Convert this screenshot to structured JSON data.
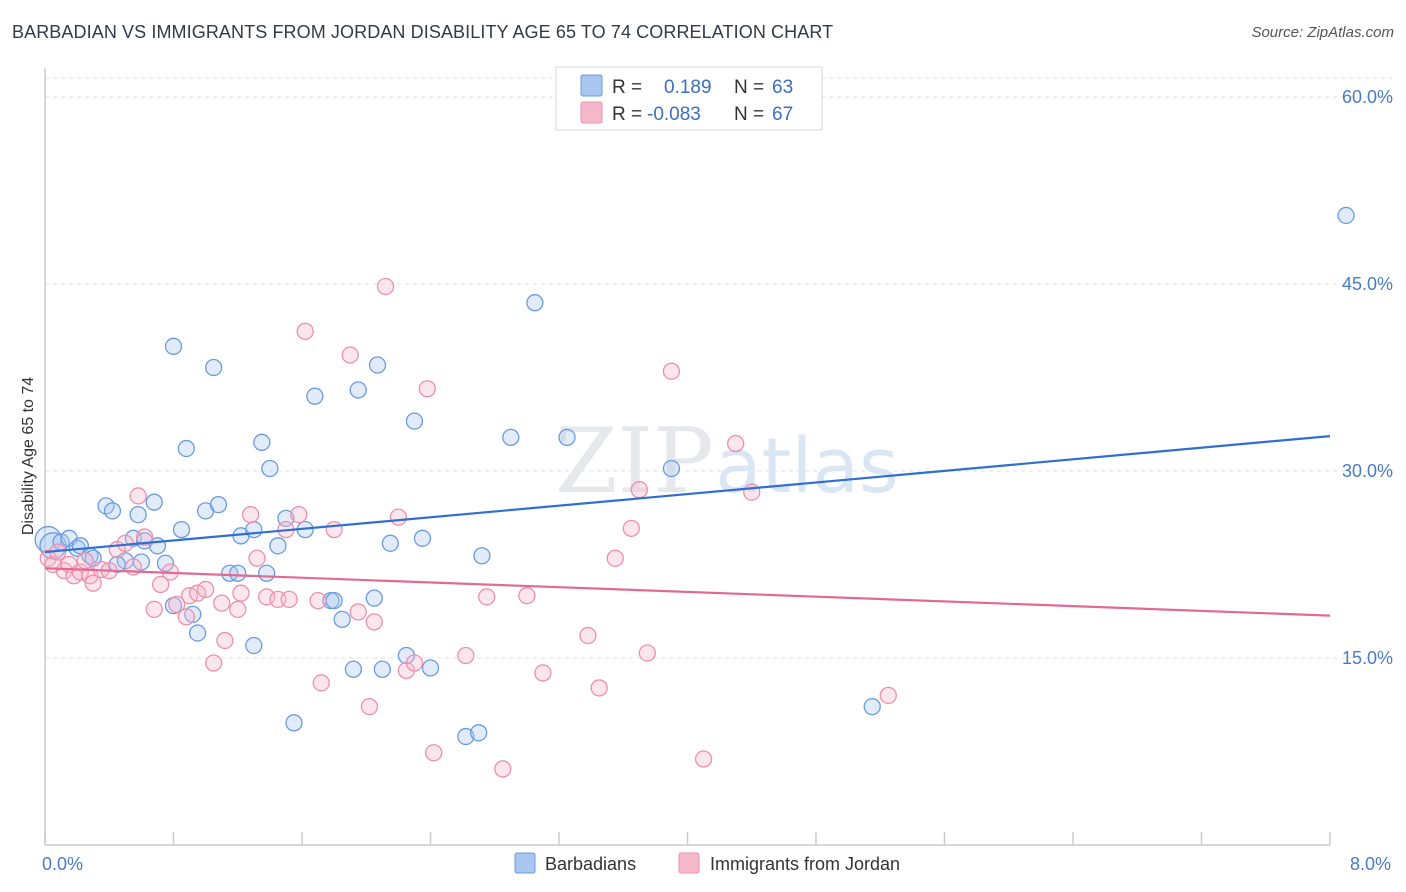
{
  "header": {
    "title": "BARBADIAN VS IMMIGRANTS FROM JORDAN DISABILITY AGE 65 TO 74 CORRELATION CHART",
    "source": "Source: ZipAtlas.com"
  },
  "watermark": {
    "zip": "ZIP",
    "atlas": "atlas"
  },
  "legend_box": {
    "rows": [
      {
        "r_label": "R =",
        "r_value": "0.189",
        "n_label": "N =",
        "n_value": "63",
        "color": "#a9c6f0"
      },
      {
        "r_label": "R =",
        "r_value": "-0.083",
        "n_label": "N =",
        "n_value": "67",
        "color": "#f5b8cb"
      }
    ]
  },
  "chart_data": {
    "type": "scatter",
    "title": "BARBADIAN VS IMMIGRANTS FROM JORDAN DISABILITY AGE 65 TO 74 CORRELATION CHART",
    "xlabel": "",
    "ylabel": "Disability Age 65 to 74",
    "xlim": [
      0,
      8
    ],
    "ylim": [
      0,
      60
    ],
    "x_tick_labels": [
      "0.0%",
      "8.0%"
    ],
    "y_ticks": [
      15,
      30,
      45,
      60
    ],
    "y_tick_labels": [
      "15.0%",
      "30.0%",
      "45.0%",
      "60.0%"
    ],
    "grid": true,
    "legend_position": "bottom",
    "series": [
      {
        "name": "Barbadians",
        "color": "#6a9be0",
        "fill": "#a9c6f0",
        "trend": {
          "x": [
            0,
            8
          ],
          "y": [
            23.5,
            32.8
          ],
          "color": "#2f6fd0"
        },
        "points": [
          [
            0.02,
            24.5
          ],
          [
            0.05,
            24.0
          ],
          [
            0.1,
            24.3
          ],
          [
            0.15,
            24.6
          ],
          [
            0.2,
            23.8
          ],
          [
            0.22,
            24.0
          ],
          [
            0.28,
            23.2
          ],
          [
            0.3,
            23.0
          ],
          [
            0.38,
            27.2
          ],
          [
            0.42,
            26.8
          ],
          [
            0.5,
            22.8
          ],
          [
            0.55,
            24.6
          ],
          [
            0.58,
            26.5
          ],
          [
            0.62,
            24.4
          ],
          [
            0.68,
            27.5
          ],
          [
            0.7,
            24.0
          ],
          [
            0.75,
            22.6
          ],
          [
            0.8,
            19.2
          ],
          [
            0.85,
            25.3
          ],
          [
            0.88,
            31.8
          ],
          [
            0.92,
            18.5
          ],
          [
            0.95,
            17.0
          ],
          [
            1.0,
            26.8
          ],
          [
            1.05,
            38.3
          ],
          [
            1.08,
            27.3
          ],
          [
            1.15,
            21.8
          ],
          [
            1.2,
            21.8
          ],
          [
            1.22,
            24.8
          ],
          [
            1.3,
            25.3
          ],
          [
            1.35,
            32.3
          ],
          [
            1.38,
            21.8
          ],
          [
            1.4,
            30.2
          ],
          [
            1.45,
            24.0
          ],
          [
            1.5,
            26.2
          ],
          [
            1.55,
            9.8
          ],
          [
            1.62,
            25.3
          ],
          [
            1.68,
            36.0
          ],
          [
            1.78,
            19.6
          ],
          [
            1.8,
            19.6
          ],
          [
            1.85,
            18.1
          ],
          [
            1.92,
            14.1
          ],
          [
            1.95,
            36.5
          ],
          [
            2.05,
            19.8
          ],
          [
            2.07,
            38.5
          ],
          [
            2.1,
            14.1
          ],
          [
            2.15,
            24.2
          ],
          [
            2.25,
            15.2
          ],
          [
            2.3,
            34.0
          ],
          [
            2.35,
            24.6
          ],
          [
            2.4,
            14.2
          ],
          [
            2.62,
            8.7
          ],
          [
            2.7,
            9.0
          ],
          [
            2.72,
            23.2
          ],
          [
            2.9,
            32.7
          ],
          [
            3.05,
            43.5
          ],
          [
            3.25,
            32.7
          ],
          [
            3.9,
            30.2
          ],
          [
            5.15,
            11.1
          ],
          [
            8.1,
            50.5
          ],
          [
            0.8,
            40.0
          ],
          [
            1.3,
            16.0
          ],
          [
            0.45,
            22.5
          ],
          [
            0.6,
            22.7
          ]
        ]
      },
      {
        "name": "Immigrants from Jordan",
        "color": "#ee8fac",
        "fill": "#f5b8cb",
        "trend": {
          "x": [
            0,
            8
          ],
          "y": [
            22.2,
            18.4
          ],
          "color": "#e06a93"
        },
        "points": [
          [
            0.02,
            23.0
          ],
          [
            0.05,
            22.5
          ],
          [
            0.08,
            23.5
          ],
          [
            0.12,
            22.0
          ],
          [
            0.15,
            22.5
          ],
          [
            0.18,
            21.6
          ],
          [
            0.22,
            21.9
          ],
          [
            0.28,
            21.6
          ],
          [
            0.3,
            21.0
          ],
          [
            0.35,
            22.1
          ],
          [
            0.4,
            22.0
          ],
          [
            0.45,
            23.7
          ],
          [
            0.5,
            24.2
          ],
          [
            0.55,
            22.3
          ],
          [
            0.58,
            28.0
          ],
          [
            0.62,
            24.7
          ],
          [
            0.68,
            18.9
          ],
          [
            0.72,
            20.9
          ],
          [
            0.78,
            21.9
          ],
          [
            0.82,
            19.3
          ],
          [
            0.88,
            18.3
          ],
          [
            0.9,
            20.0
          ],
          [
            0.95,
            20.2
          ],
          [
            1.0,
            20.5
          ],
          [
            1.05,
            14.6
          ],
          [
            1.1,
            19.4
          ],
          [
            1.12,
            16.4
          ],
          [
            1.2,
            18.9
          ],
          [
            1.22,
            20.2
          ],
          [
            1.28,
            26.5
          ],
          [
            1.32,
            23.0
          ],
          [
            1.38,
            19.9
          ],
          [
            1.45,
            19.7
          ],
          [
            1.5,
            25.3
          ],
          [
            1.52,
            19.7
          ],
          [
            1.58,
            26.5
          ],
          [
            1.62,
            41.2
          ],
          [
            1.7,
            19.6
          ],
          [
            1.72,
            13.0
          ],
          [
            1.8,
            25.3
          ],
          [
            1.9,
            39.3
          ],
          [
            1.95,
            18.7
          ],
          [
            2.02,
            11.1
          ],
          [
            2.05,
            17.9
          ],
          [
            2.12,
            44.8
          ],
          [
            2.2,
            26.3
          ],
          [
            2.25,
            14.0
          ],
          [
            2.3,
            14.6
          ],
          [
            2.38,
            36.6
          ],
          [
            2.42,
            7.4
          ],
          [
            2.62,
            15.2
          ],
          [
            2.75,
            19.9
          ],
          [
            2.85,
            6.1
          ],
          [
            3.0,
            20.0
          ],
          [
            3.1,
            13.8
          ],
          [
            3.38,
            16.8
          ],
          [
            3.45,
            12.6
          ],
          [
            3.55,
            23.0
          ],
          [
            3.65,
            25.4
          ],
          [
            3.7,
            28.5
          ],
          [
            3.75,
            15.4
          ],
          [
            3.9,
            38.0
          ],
          [
            4.1,
            6.9
          ],
          [
            4.3,
            32.2
          ],
          [
            4.4,
            28.3
          ],
          [
            5.25,
            12.0
          ],
          [
            0.25,
            22.8
          ]
        ]
      }
    ]
  },
  "bottom_legend": {
    "items": [
      {
        "label": "Barbadians",
        "color": "#a9c6f0",
        "stroke": "#6a9be0"
      },
      {
        "label": "Immigrants from Jordan",
        "color": "#f5b8cb",
        "stroke": "#ee8fac"
      }
    ]
  }
}
